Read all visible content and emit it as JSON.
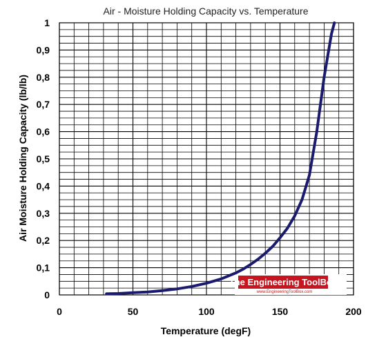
{
  "chart_data": {
    "type": "line",
    "title": "Air - Moisture Holding Capacity vs. Temperature",
    "xlabel": "Temperature (degF)",
    "ylabel": "Air Moisture Holding Capacity (lb/lb)",
    "xlim": [
      0,
      200
    ],
    "ylim": [
      0,
      1
    ],
    "x_ticks": [
      "0",
      "50",
      "100",
      "150",
      "200"
    ],
    "y_ticks": [
      "0",
      "0,1",
      "0,2",
      "0,3",
      "0,4",
      "0,5",
      "0,6",
      "0,7",
      "0,8",
      "0,9",
      "1"
    ],
    "grid": true,
    "legend": "none",
    "colors": {
      "line": "#1a1a6e",
      "grid": "#000000",
      "watermark_bg": "#c8141e"
    },
    "series": [
      {
        "x": [
          32,
          40,
          50,
          60,
          70,
          80,
          90,
          100,
          110,
          120,
          125,
          130,
          135,
          140,
          145,
          150,
          155,
          160,
          165,
          170,
          175,
          180,
          185,
          187
        ],
        "y": [
          0.004,
          0.005,
          0.008,
          0.011,
          0.016,
          0.022,
          0.031,
          0.043,
          0.059,
          0.081,
          0.095,
          0.112,
          0.131,
          0.153,
          0.178,
          0.21,
          0.245,
          0.29,
          0.35,
          0.44,
          0.6,
          0.8,
          0.96,
          1.0
        ]
      }
    ]
  },
  "watermark": {
    "title": "The Engineering ToolBox",
    "url": "www.EngineeringToolBox.com"
  }
}
